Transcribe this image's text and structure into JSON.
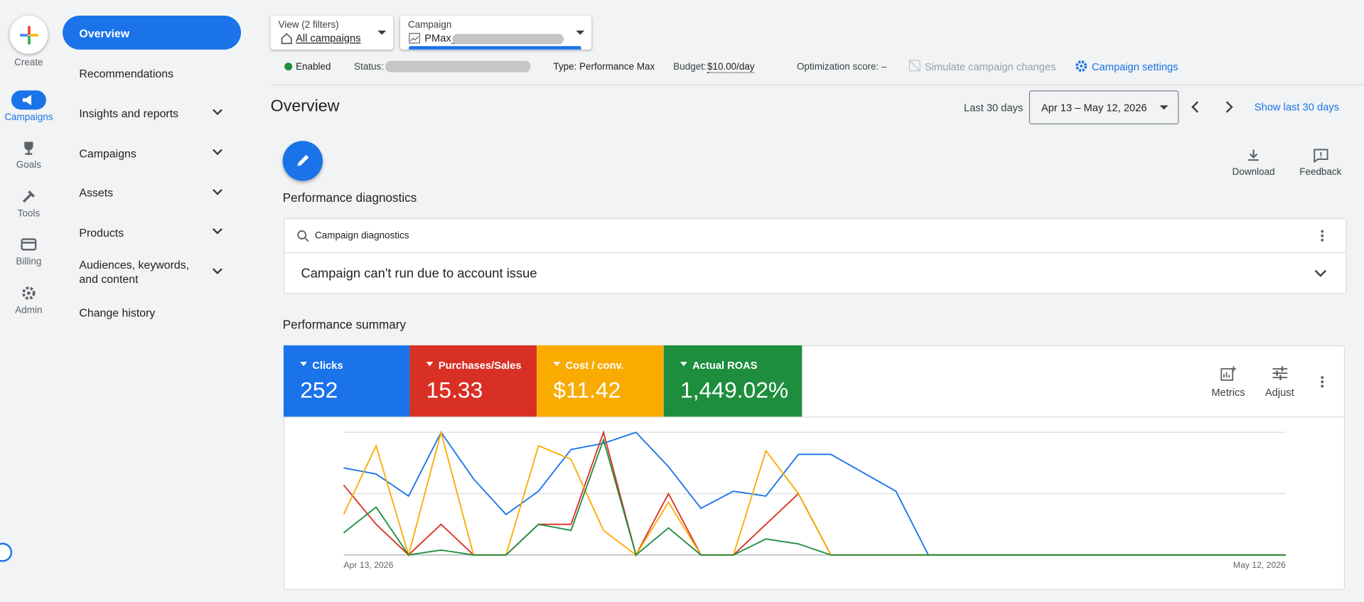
{
  "nav_rail": [
    "Create",
    "Campaigns",
    "Goals",
    "Tools",
    "Billing",
    "Admin"
  ],
  "side_menu": [
    "Overview",
    "Recommendations",
    "Insights and reports",
    "Campaigns",
    "Assets",
    "Products",
    "Audiences, keywords, and content",
    "Change history"
  ],
  "header": {
    "view_label": "View (2 filters)",
    "view_value": "All campaigns",
    "campaign_label": "Campaign",
    "campaign_value": "PMax_",
    "status_enabled": "Enabled",
    "status": "Status:",
    "type": "Type: Performance Max",
    "budget_label": "Budget:",
    "budget_value": "$10.00/day",
    "optimization": "Optimization score: –",
    "simulate": "Simulate campaign changes",
    "settings": "Campaign settings"
  },
  "page": {
    "title": "Overview",
    "range_label": "Last 30 days",
    "date_range": "Apr 13 – May 12, 2026",
    "show_last": "Show last 30 days",
    "download": "Download",
    "feedback": "Feedback"
  },
  "diagnostics": {
    "title": "Performance diagnostics",
    "card_title": "Campaign diagnostics",
    "message": "Campaign can't run due to account issue"
  },
  "summary": {
    "title": "Performance summary",
    "metrics": "Metrics",
    "adjust": "Adjust"
  },
  "chart_data": {
    "type": "line",
    "categories": [
      "Apr 13, 2026",
      null,
      null,
      null,
      null,
      null,
      null,
      null,
      null,
      null,
      null,
      null,
      null,
      null,
      null,
      null,
      null,
      null,
      null,
      null,
      null,
      null,
      null,
      null,
      null,
      null,
      null,
      null,
      null,
      "May 12, 2026"
    ],
    "ylim": [
      0,
      100
    ],
    "yticks": [
      0,
      50,
      100
    ],
    "grid": true,
    "series": [
      {
        "name": "Clicks",
        "summary": "252",
        "color": "#1a73e8",
        "values": [
          71,
          66,
          48,
          100,
          62,
          33,
          52,
          86,
          91,
          100,
          72,
          38,
          52,
          48,
          82,
          82,
          67,
          52,
          0,
          0,
          0,
          0,
          0,
          0,
          0,
          0,
          0,
          0,
          0,
          0
        ]
      },
      {
        "name": "Purchases/Sales",
        "summary": "15.33",
        "color": "#d93025",
        "values": [
          57,
          25,
          0,
          25,
          0,
          0,
          25,
          25,
          100,
          0,
          50,
          0,
          0,
          25,
          50,
          0,
          0,
          0,
          0,
          0,
          0,
          0,
          0,
          0,
          0,
          0,
          0,
          0,
          0,
          0
        ]
      },
      {
        "name": "Cost / conv.",
        "summary": "$11.42",
        "color": "#f9ab00",
        "values": [
          33,
          89,
          0,
          100,
          0,
          0,
          89,
          78,
          20,
          0,
          43,
          0,
          0,
          85,
          50,
          0,
          0,
          0,
          0,
          0,
          0,
          0,
          0,
          0,
          0,
          0,
          0,
          0,
          0,
          0
        ]
      },
      {
        "name": "Actual ROAS",
        "summary": "1,449.02%",
        "color": "#1e8e3e",
        "values": [
          18,
          39,
          0,
          4,
          0,
          0,
          25,
          20,
          94,
          0,
          22,
          0,
          0,
          13,
          9,
          0,
          0,
          0,
          0,
          0,
          0,
          0,
          0,
          0,
          0,
          0,
          0,
          0,
          0,
          0
        ]
      }
    ]
  }
}
